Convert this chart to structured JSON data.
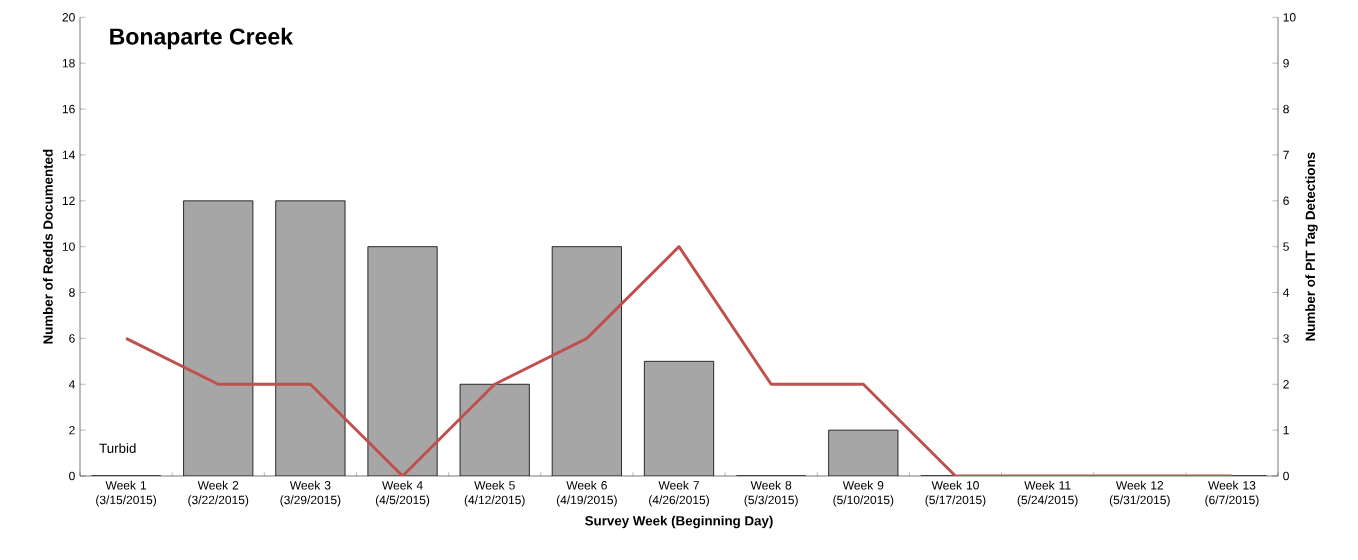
{
  "chart_data": {
    "type": "bar",
    "title": "Bonaparte Creek",
    "xlabel": "Survey Week (Beginning Day)",
    "ylabel": "Number of Redds Documented",
    "y2label": "Number of PIT Tag Detections",
    "categories": [
      "Week 1 (3/15/2015)",
      "Week 2 (3/22/2015)",
      "Week 3 (3/29/2015)",
      "Week 4 (4/5/2015)",
      "Week 5 (4/12/2015)",
      "Week 6 (4/19/2015)",
      "Week 7 (4/26/2015)",
      "Week 8 (5/3/2015)",
      "Week 9 (5/10/2015)",
      "Week 10 (5/17/2015)",
      "Week 11 (5/24/2015)",
      "Week 12 (5/31/2015)",
      "Week 13 (6/7/2015)"
    ],
    "series": [
      {
        "color": "#a6a6a6",
        "values": [
          0,
          12,
          12,
          10,
          4,
          10,
          5,
          0,
          2,
          0,
          0,
          0,
          0
        ]
      },
      {
        "type": "line",
        "axis": "y2",
        "color": "#c0504d",
        "values": [
          3,
          2,
          2,
          0,
          2,
          3,
          5,
          2,
          2,
          0,
          0,
          0,
          0
        ]
      }
    ],
    "ylim": [
      0,
      20
    ],
    "yticks": [
      0,
      2,
      4,
      6,
      8,
      10,
      12,
      14,
      16,
      18,
      20
    ],
    "y2lim": [
      0,
      10
    ],
    "y2ticks": [
      0,
      1,
      2,
      3,
      4,
      5,
      6,
      7,
      8,
      9,
      10
    ],
    "annotations": [
      "Turbid"
    ],
    "grid": false
  }
}
